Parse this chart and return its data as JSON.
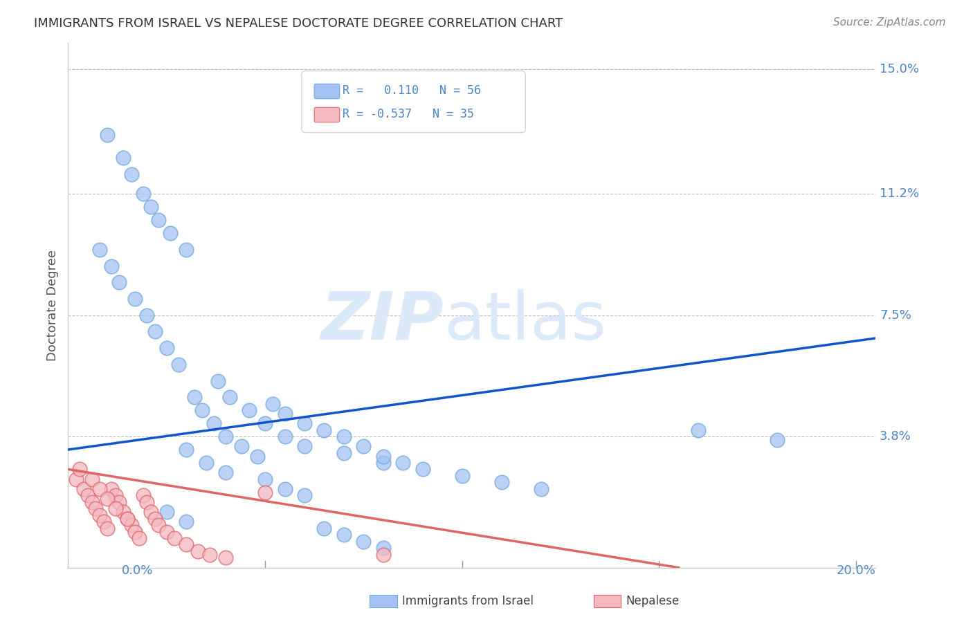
{
  "title": "IMMIGRANTS FROM ISRAEL VS NEPALESE DOCTORATE DEGREE CORRELATION CHART",
  "source": "Source: ZipAtlas.com",
  "ylabel": "Doctorate Degree",
  "yticks": [
    0.0,
    0.038,
    0.075,
    0.112,
    0.15
  ],
  "ytick_labels": [
    "",
    "3.8%",
    "7.5%",
    "11.2%",
    "15.0%"
  ],
  "xticks": [
    0.0,
    0.05,
    0.1,
    0.15,
    0.2
  ],
  "xlim": [
    0.0,
    0.205
  ],
  "ylim": [
    -0.002,
    0.158
  ],
  "blue_color": "#a4c2f4",
  "pink_color": "#f4b8c1",
  "blue_edge": "#6fa8dc",
  "pink_edge": "#e06666",
  "line_blue": "#1155cc",
  "line_pink": "#cc4125",
  "blue_line_x": [
    0.0,
    0.205
  ],
  "blue_line_y": [
    0.034,
    0.068
  ],
  "pink_line_x": [
    0.0,
    0.155
  ],
  "pink_line_y": [
    0.028,
    -0.002
  ],
  "background_color": "#ffffff",
  "grid_color": "#bbbbbb",
  "title_color": "#333333",
  "label_color": "#4a86c8",
  "watermark_color": "#dce9f9",
  "blue_scatter_x": [
    0.01,
    0.014,
    0.016,
    0.019,
    0.021,
    0.023,
    0.026,
    0.03,
    0.008,
    0.011,
    0.013,
    0.017,
    0.02,
    0.022,
    0.025,
    0.028,
    0.032,
    0.034,
    0.037,
    0.04,
    0.044,
    0.048,
    0.052,
    0.055,
    0.06,
    0.065,
    0.038,
    0.041,
    0.046,
    0.05,
    0.055,
    0.06,
    0.07,
    0.08,
    0.09,
    0.1,
    0.11,
    0.12,
    0.07,
    0.075,
    0.08,
    0.085,
    0.03,
    0.035,
    0.04,
    0.05,
    0.055,
    0.06,
    0.16,
    0.18,
    0.025,
    0.03,
    0.065,
    0.07,
    0.075,
    0.08
  ],
  "blue_scatter_y": [
    0.13,
    0.123,
    0.118,
    0.112,
    0.108,
    0.104,
    0.1,
    0.095,
    0.095,
    0.09,
    0.085,
    0.08,
    0.075,
    0.07,
    0.065,
    0.06,
    0.05,
    0.046,
    0.042,
    0.038,
    0.035,
    0.032,
    0.048,
    0.045,
    0.042,
    0.04,
    0.055,
    0.05,
    0.046,
    0.042,
    0.038,
    0.035,
    0.033,
    0.03,
    0.028,
    0.026,
    0.024,
    0.022,
    0.038,
    0.035,
    0.032,
    0.03,
    0.034,
    0.03,
    0.027,
    0.025,
    0.022,
    0.02,
    0.04,
    0.037,
    0.015,
    0.012,
    0.01,
    0.008,
    0.006,
    0.004
  ],
  "pink_scatter_x": [
    0.002,
    0.004,
    0.005,
    0.006,
    0.007,
    0.008,
    0.009,
    0.01,
    0.011,
    0.012,
    0.013,
    0.014,
    0.015,
    0.016,
    0.017,
    0.018,
    0.019,
    0.02,
    0.021,
    0.022,
    0.023,
    0.025,
    0.027,
    0.03,
    0.033,
    0.036,
    0.04,
    0.003,
    0.006,
    0.008,
    0.01,
    0.012,
    0.015,
    0.05,
    0.08
  ],
  "pink_scatter_y": [
    0.025,
    0.022,
    0.02,
    0.018,
    0.016,
    0.014,
    0.012,
    0.01,
    0.022,
    0.02,
    0.018,
    0.015,
    0.013,
    0.011,
    0.009,
    0.007,
    0.02,
    0.018,
    0.015,
    0.013,
    0.011,
    0.009,
    0.007,
    0.005,
    0.003,
    0.002,
    0.001,
    0.028,
    0.025,
    0.022,
    0.019,
    0.016,
    0.013,
    0.021,
    0.002
  ]
}
